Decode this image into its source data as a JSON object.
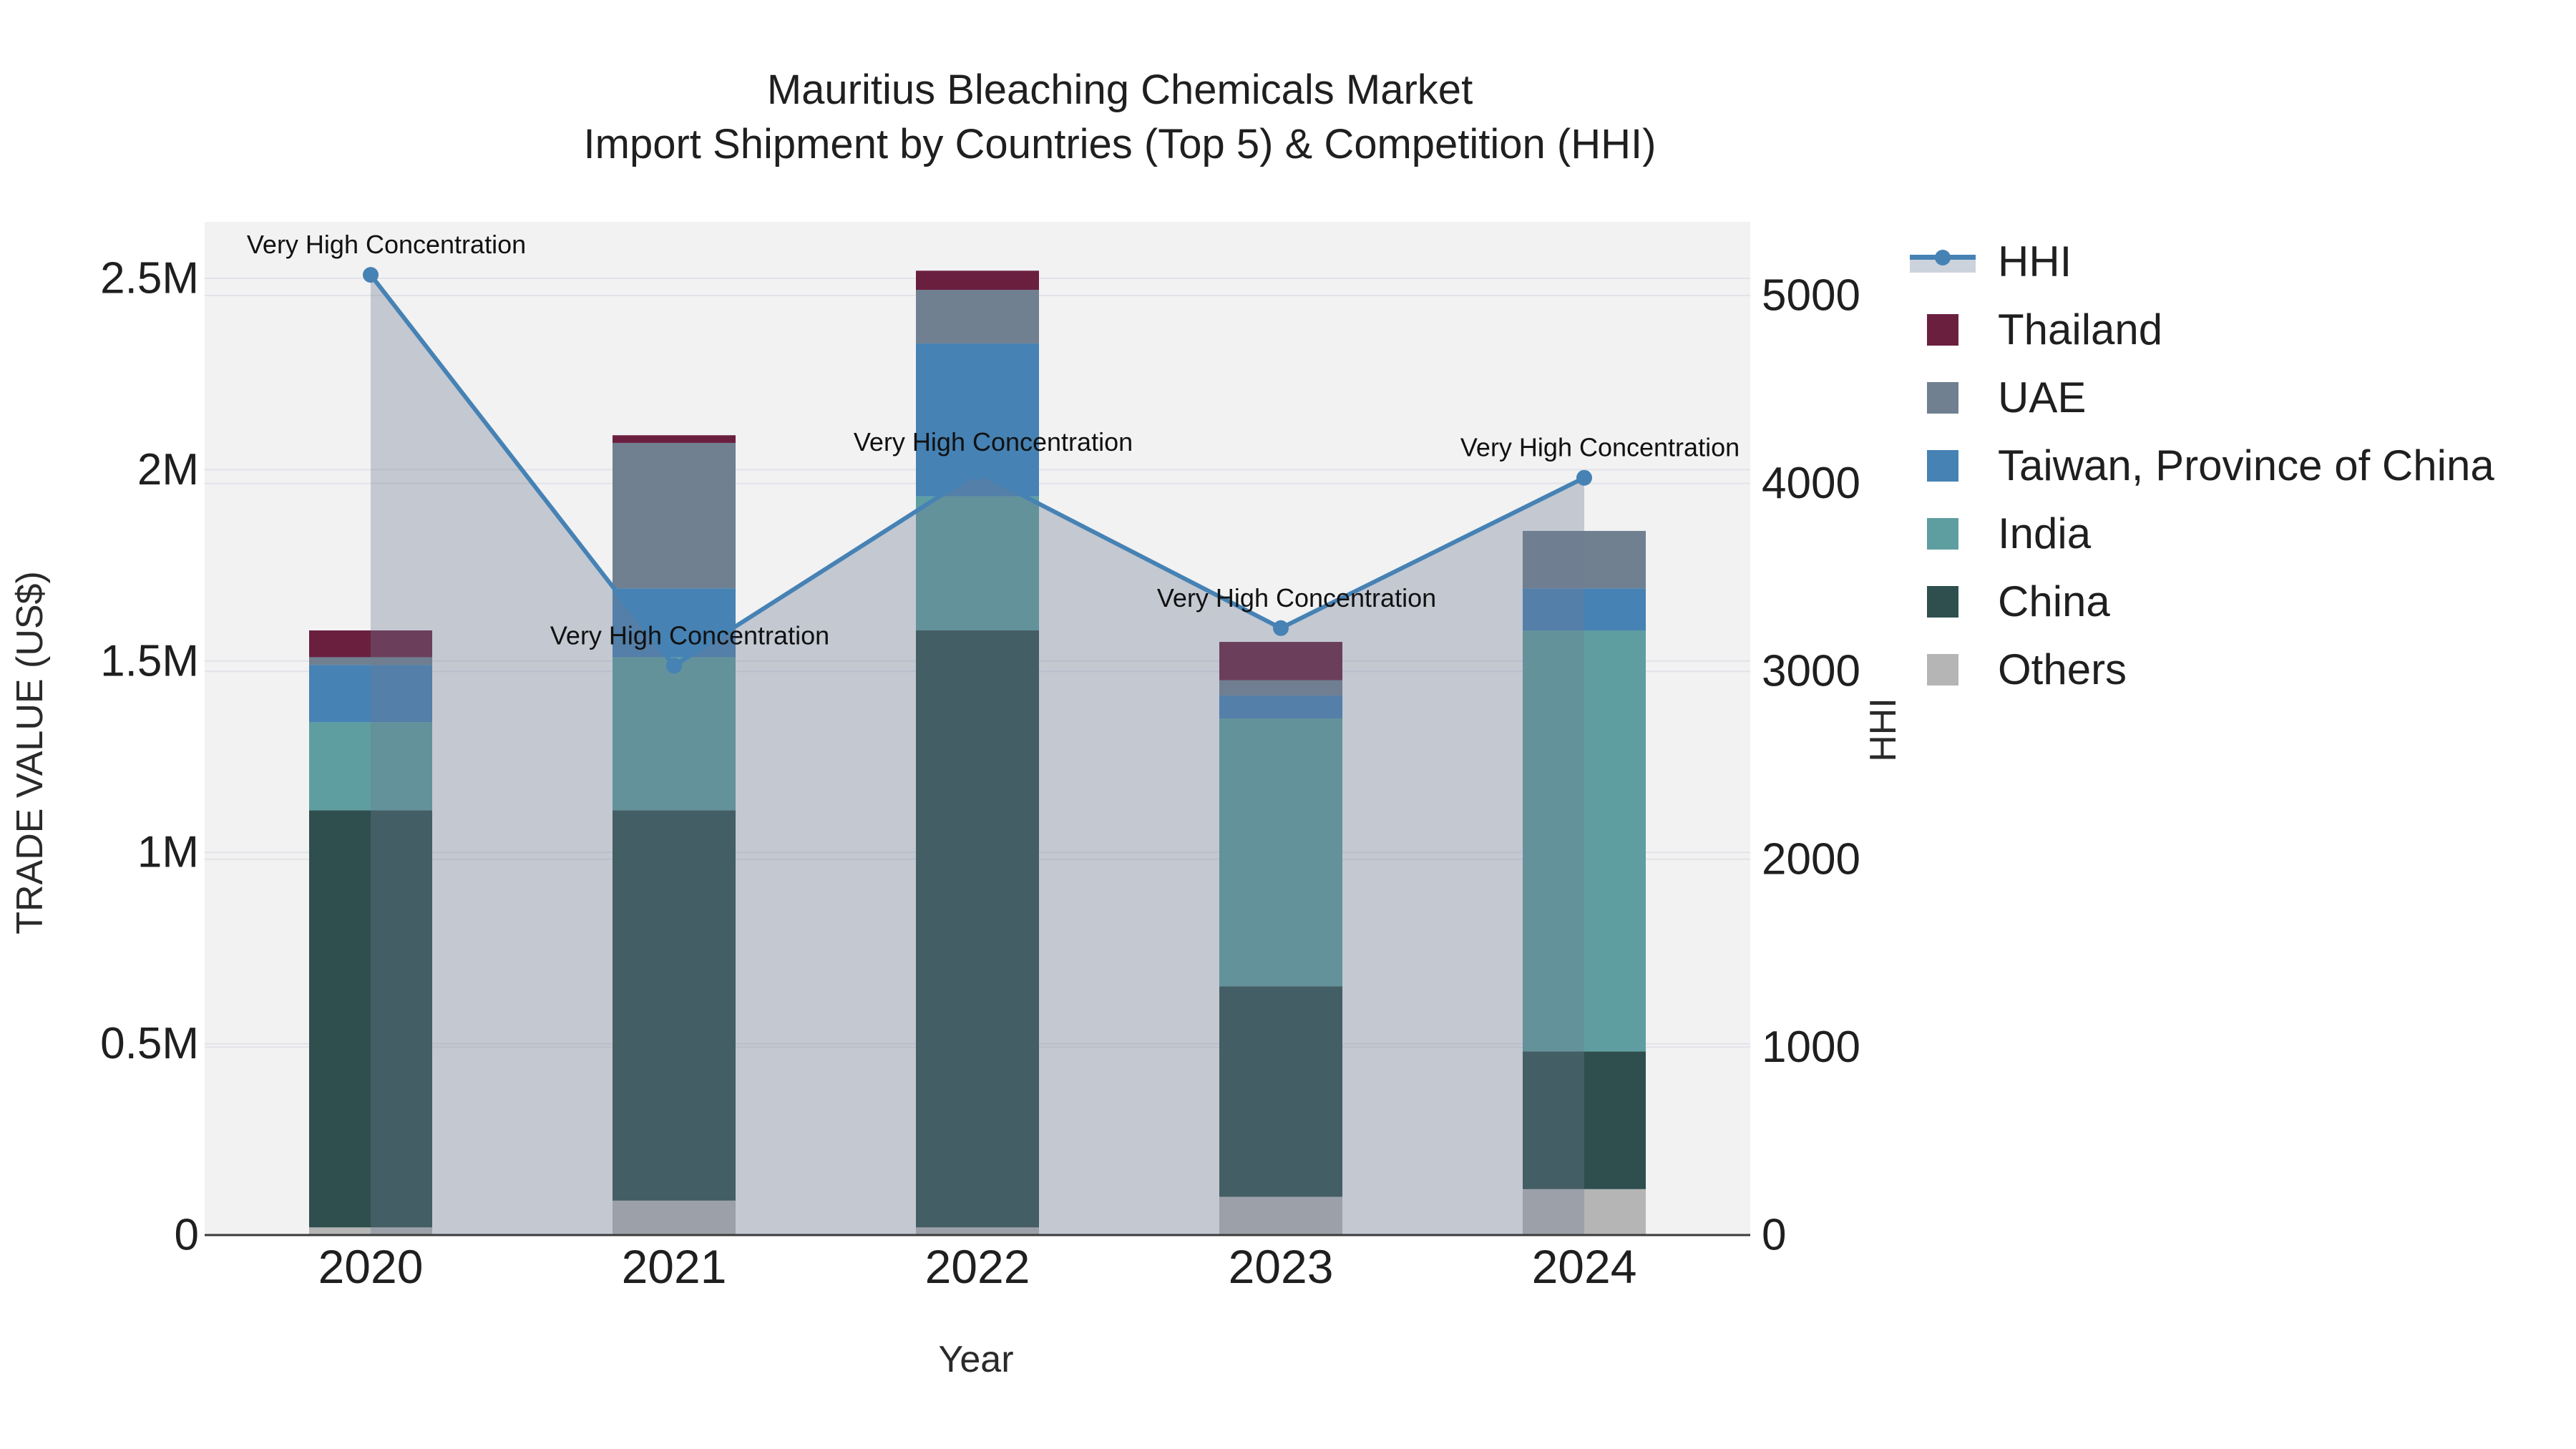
{
  "title": {
    "line1": "Mauritius Bleaching Chemicals Market",
    "line2": "Import Shipment by Countries (Top 5) & Competition (HHI)"
  },
  "axes": {
    "x_title": "Year",
    "y_left_title": "TRADE VALUE (US$)",
    "y_right_title": "HHI"
  },
  "legend": {
    "items": [
      {
        "label": "HHI",
        "type": "line",
        "color": "#4682b4",
        "band_color": "#cdd3dc"
      },
      {
        "label": "Thailand",
        "type": "square",
        "color": "#6b1f3f"
      },
      {
        "label": "UAE",
        "type": "square",
        "color": "#708090"
      },
      {
        "label": "Taiwan, Province of China",
        "type": "square",
        "color": "#4682b4"
      },
      {
        "label": "India",
        "type": "square",
        "color": "#5f9ea0"
      },
      {
        "label": "China",
        "type": "square",
        "color": "#2f4f4f"
      },
      {
        "label": "Others",
        "type": "square",
        "color": "#b5b5b5"
      }
    ]
  },
  "chart_data": {
    "type": "bar",
    "subtype": "stacked-bars-with-line-area-overlay",
    "title": "Mauritius Bleaching Chemicals Market Import Shipment by Countries (Top 5) & Competition (HHI)",
    "xlabel": "Year",
    "ylabel_left": "TRADE VALUE (US$)",
    "ylabel_right": "HHI",
    "categories": [
      "2020",
      "2021",
      "2022",
      "2023",
      "2024"
    ],
    "bar_value_unit": "million US$",
    "series": [
      {
        "name": "Others",
        "color": "#b5b5b5",
        "values": [
          0.02,
          0.09,
          0.02,
          0.1,
          0.12
        ]
      },
      {
        "name": "China",
        "color": "#2f4f4f",
        "values": [
          1.09,
          1.02,
          1.56,
          0.55,
          0.36
        ]
      },
      {
        "name": "India",
        "color": "#5f9ea0",
        "values": [
          0.23,
          0.4,
          0.35,
          0.7,
          1.1
        ]
      },
      {
        "name": "Taiwan, Province of China",
        "color": "#4682b4",
        "values": [
          0.15,
          0.18,
          0.4,
          0.06,
          0.11
        ]
      },
      {
        "name": "UAE",
        "color": "#708090",
        "values": [
          0.02,
          0.38,
          0.14,
          0.04,
          0.15
        ]
      },
      {
        "name": "Thailand",
        "color": "#6b1f3f",
        "values": [
          0.07,
          0.02,
          0.05,
          0.1,
          0.0
        ]
      }
    ],
    "bar_totals_millions": [
      1.58,
      2.09,
      2.52,
      1.55,
      1.84
    ],
    "line_series": {
      "name": "HHI",
      "color": "#4682b4",
      "area_fill_color": "rgba(108,122,145,0.35)",
      "values": [
        5110,
        3030,
        4060,
        3230,
        4030
      ]
    },
    "point_annotations": [
      "Very High Concentration",
      "Very High Concentration",
      "Very High Concentration",
      "Very High Concentration",
      "Very High Concentration"
    ],
    "y_left_axis": {
      "ticks": [
        0,
        0.5,
        1.0,
        1.5,
        2.0,
        2.5
      ],
      "tick_labels": [
        "0",
        "0.5M",
        "1M",
        "1.5M",
        "2M",
        "2.5M"
      ],
      "range_max_millions": 2.65,
      "grid": true
    },
    "y_right_axis": {
      "ticks": [
        0,
        1000,
        2000,
        3000,
        4000,
        5000
      ],
      "tick_labels": [
        "0",
        "1000",
        "2000",
        "3000",
        "4000",
        "5000"
      ],
      "range_max": 5390,
      "grid": true
    },
    "legend_position": "right",
    "plot_background": "#f2f2f3",
    "gridline_color": "#e2e3e8",
    "axis_line_color": "#3b3b3b",
    "text_color": "#1f1f1f"
  }
}
